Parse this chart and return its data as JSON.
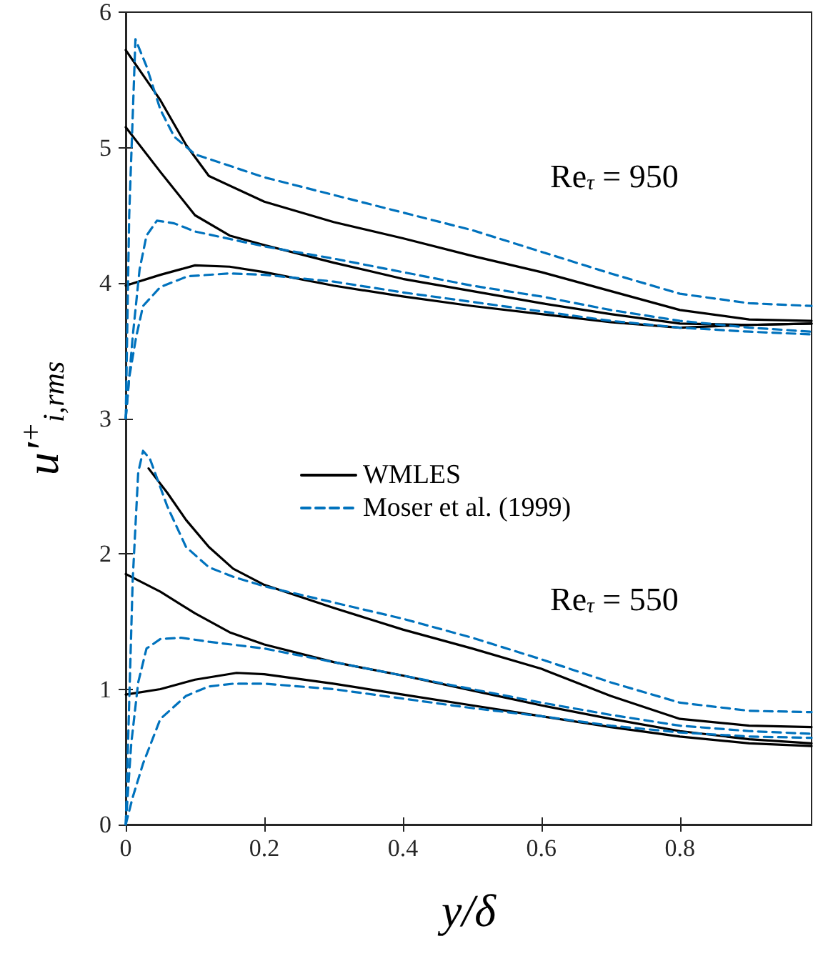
{
  "chart_data": {
    "type": "line",
    "xlabel": "y/δ",
    "ylabel": "u′$^{+}$$_{i,rms}$",
    "xlim": [
      0,
      0.99
    ],
    "xticks": [
      0,
      0.2,
      0.4,
      0.6,
      0.8
    ],
    "ylim": [
      0,
      6
    ],
    "yticks": [
      0,
      1,
      2,
      3,
      4,
      5,
      6
    ],
    "grid": false,
    "legend": "left",
    "marker": "none",
    "annotations": [
      "Re$_{τ}$ = 950",
      "Re$_{τ}$ = 550"
    ],
    "series": [
      {
        "name": "WMLES",
        "color": "#000000",
        "line_style": "solid",
        "x": [
          0,
          0.05,
          0.087,
          0.12,
          0.2,
          0.3,
          0.4,
          0.5,
          0.6,
          0.7,
          0.8,
          0.9,
          0.99
        ],
        "values": [
          5.72,
          5.35,
          5.02,
          4.79,
          4.6,
          4.45,
          4.33,
          4.2,
          4.08,
          3.94,
          3.8,
          3.73,
          3.72
        ]
      },
      {
        "color": "#000000",
        "line_style": "solid",
        "x": [
          0,
          0.05,
          0.1,
          0.15,
          0.2,
          0.3,
          0.4,
          0.5,
          0.6,
          0.7,
          0.8,
          0.9,
          0.99
        ],
        "values": [
          5.15,
          4.82,
          4.5,
          4.35,
          4.28,
          4.15,
          4.03,
          3.94,
          3.85,
          3.77,
          3.7,
          3.69,
          3.7
        ]
      },
      {
        "color": "#000000",
        "line_style": "solid",
        "x": [
          0,
          0.05,
          0.1,
          0.15,
          0.2,
          0.3,
          0.4,
          0.5,
          0.6,
          0.7,
          0.8,
          0.9,
          0.99
        ],
        "values": [
          3.98,
          4.06,
          4.13,
          4.12,
          4.08,
          3.98,
          3.9,
          3.83,
          3.77,
          3.71,
          3.67,
          3.69,
          3.7
        ]
      },
      {
        "color": "#000000",
        "line_style": "solid",
        "x": [
          0.033,
          0.06,
          0.087,
          0.12,
          0.155,
          0.2,
          0.3,
          0.4,
          0.5,
          0.6,
          0.7,
          0.8,
          0.9,
          0.99
        ],
        "values": [
          2.63,
          2.45,
          2.25,
          2.05,
          1.89,
          1.77,
          1.6,
          1.44,
          1.3,
          1.15,
          0.95,
          0.78,
          0.73,
          0.72
        ]
      },
      {
        "color": "#000000",
        "line_style": "solid",
        "x": [
          0,
          0.05,
          0.1,
          0.15,
          0.2,
          0.3,
          0.4,
          0.5,
          0.6,
          0.7,
          0.8,
          0.9,
          0.99
        ],
        "values": [
          1.85,
          1.72,
          1.56,
          1.42,
          1.33,
          1.2,
          1.1,
          0.99,
          0.88,
          0.78,
          0.69,
          0.63,
          0.6
        ]
      },
      {
        "color": "#000000",
        "line_style": "solid",
        "x": [
          0,
          0.05,
          0.1,
          0.16,
          0.2,
          0.3,
          0.4,
          0.5,
          0.6,
          0.7,
          0.8,
          0.9,
          0.99
        ],
        "values": [
          0.96,
          1.0,
          1.07,
          1.12,
          1.11,
          1.04,
          0.96,
          0.88,
          0.8,
          0.72,
          0.65,
          0.6,
          0.58
        ]
      },
      {
        "name": "Moser et al. (1999)",
        "color": "#0072bd",
        "line_style": "dashed",
        "x": [
          0,
          0.005,
          0.014,
          0.03,
          0.05,
          0.07,
          0.1,
          0.2,
          0.3,
          0.4,
          0.5,
          0.6,
          0.7,
          0.8,
          0.9,
          0.99
        ],
        "values": [
          3.0,
          4.5,
          5.8,
          5.6,
          5.28,
          5.08,
          4.95,
          4.78,
          4.65,
          4.52,
          4.39,
          4.23,
          4.07,
          3.92,
          3.85,
          3.83
        ]
      },
      {
        "color": "#0072bd",
        "line_style": "dashed",
        "x": [
          0,
          0.01,
          0.02,
          0.03,
          0.045,
          0.07,
          0.1,
          0.2,
          0.3,
          0.4,
          0.5,
          0.6,
          0.7,
          0.8,
          0.9,
          0.99
        ],
        "values": [
          3.0,
          3.6,
          4.1,
          4.35,
          4.46,
          4.44,
          4.38,
          4.27,
          4.18,
          4.08,
          3.98,
          3.9,
          3.8,
          3.72,
          3.67,
          3.64
        ]
      },
      {
        "color": "#0072bd",
        "line_style": "dashed",
        "x": [
          0,
          0.005,
          0.015,
          0.025,
          0.05,
          0.09,
          0.15,
          0.2,
          0.3,
          0.4,
          0.5,
          0.6,
          0.7,
          0.8,
          0.9,
          0.99
        ],
        "values": [
          3.0,
          3.3,
          3.6,
          3.83,
          3.97,
          4.05,
          4.07,
          4.06,
          4.01,
          3.93,
          3.86,
          3.79,
          3.72,
          3.67,
          3.64,
          3.62
        ]
      },
      {
        "color": "#0072bd",
        "line_style": "dashed",
        "x": [
          0,
          0.005,
          0.01,
          0.018,
          0.025,
          0.035,
          0.06,
          0.087,
          0.12,
          0.155,
          0.2,
          0.3,
          0.4,
          0.5,
          0.6,
          0.7,
          0.8,
          0.9,
          0.99
        ],
        "values": [
          0,
          0.9,
          1.8,
          2.6,
          2.76,
          2.7,
          2.35,
          2.05,
          1.9,
          1.83,
          1.76,
          1.64,
          1.52,
          1.38,
          1.22,
          1.05,
          0.9,
          0.84,
          0.83
        ]
      },
      {
        "color": "#0072bd",
        "line_style": "dashed",
        "x": [
          0,
          0.008,
          0.018,
          0.03,
          0.05,
          0.08,
          0.12,
          0.2,
          0.3,
          0.4,
          0.5,
          0.6,
          0.7,
          0.8,
          0.9,
          0.99
        ],
        "values": [
          0,
          0.6,
          1.05,
          1.3,
          1.37,
          1.38,
          1.35,
          1.3,
          1.2,
          1.1,
          1.0,
          0.9,
          0.81,
          0.73,
          0.69,
          0.67
        ]
      },
      {
        "color": "#0072bd",
        "line_style": "dashed",
        "x": [
          0,
          0.01,
          0.025,
          0.05,
          0.087,
          0.12,
          0.155,
          0.2,
          0.3,
          0.4,
          0.5,
          0.6,
          0.7,
          0.8,
          0.9,
          0.99
        ],
        "values": [
          0,
          0.2,
          0.45,
          0.78,
          0.95,
          1.02,
          1.04,
          1.04,
          1.0,
          0.93,
          0.86,
          0.8,
          0.73,
          0.68,
          0.65,
          0.64
        ]
      }
    ]
  }
}
